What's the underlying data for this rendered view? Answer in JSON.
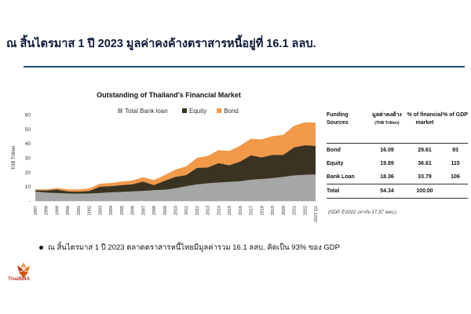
{
  "slide": {
    "title": "ณ สิ้นไตรมาส 1 ปี 2023 มูลค่าคงค้างตราสารหนี้อยู่ที่ 16.1 ลลบ.",
    "bullet": "ณ สิ้นไตรมาส 1 ปี 2023 ตลาดตราสารหนี้ไทยมีมูลค่ารวม 16.1 ลลบ. คิดเป็น 93% ของ GDP",
    "logo_text": "ThaiBMA"
  },
  "colors": {
    "bank_loan": "#a6a6a6",
    "equity": "#3b3321",
    "bond": "#f2994a",
    "rule": "#1f4e79"
  },
  "chart_data": {
    "type": "area",
    "stacked": true,
    "title": "Outstanding of Thailand's Financial Market",
    "ylabel": "THB Trillion",
    "xlabel": "",
    "ylim": [
      0,
      60
    ],
    "yticks": [
      "-",
      "10",
      "20",
      "30",
      "40",
      "50",
      "60"
    ],
    "grid": false,
    "legend_position": "top",
    "categories": [
      "1997",
      "1998",
      "1999",
      "2000",
      "2001",
      "2002",
      "2003",
      "2004",
      "2005",
      "2006",
      "2007",
      "2008",
      "2009",
      "2010",
      "2011",
      "2012",
      "2013",
      "2014",
      "2015",
      "2016",
      "2017",
      "2018",
      "2019",
      "2020",
      "2021",
      "2022",
      "2023 Q1"
    ],
    "series": [
      {
        "name": "Total Bank loan",
        "values": [
          6.5,
          5.8,
          5.5,
          5.2,
          5.0,
          5.2,
          5.5,
          6.0,
          6.3,
          6.6,
          7.0,
          7.5,
          7.8,
          8.8,
          10.2,
          11.5,
          12.3,
          12.8,
          13.3,
          13.7,
          14.7,
          15.3,
          15.8,
          16.7,
          17.7,
          18.2,
          18.4
        ]
      },
      {
        "name": "Equity",
        "values": [
          1.0,
          1.5,
          2.5,
          1.5,
          1.5,
          1.7,
          4.5,
          4.3,
          4.8,
          5.0,
          6.5,
          3.5,
          6.2,
          8.0,
          7.8,
          11.5,
          11.0,
          13.5,
          11.5,
          13.7,
          17.0,
          15.0,
          16.2,
          15.3,
          19.5,
          20.5,
          19.9
        ]
      },
      {
        "name": "Bond",
        "values": [
          0.5,
          0.7,
          1.0,
          1.3,
          1.5,
          1.8,
          2.0,
          2.2,
          2.4,
          2.6,
          3.0,
          3.5,
          4.0,
          5.0,
          6.0,
          7.0,
          8.0,
          9.0,
          10.0,
          11.0,
          11.5,
          12.5,
          13.0,
          14.0,
          15.0,
          16.0,
          16.1
        ]
      }
    ]
  },
  "table": {
    "headers": {
      "c1": "Funding Sources",
      "c2": "มูลค่าคงค้าง",
      "c2_sub": "(THB Trillion)",
      "c3": "% of financial market",
      "c4": "% of GDP"
    },
    "rows": [
      {
        "source": "Bond",
        "value": "16.09",
        "pct_fin": "29.61",
        "pct_gdp": "93"
      },
      {
        "source": "Equity",
        "value": "19.89",
        "pct_fin": "36.61",
        "pct_gdp": "115"
      },
      {
        "source": "Bank Loan",
        "value": "18.36",
        "pct_fin": "33.79",
        "pct_gdp": "106"
      }
    ],
    "total": {
      "source": "Total",
      "value": "54.34",
      "pct_fin": "100.00",
      "pct_gdp": ""
    },
    "note": "(GDP ปี 2022 เท่ากับ 17.37 ลลบ.)"
  }
}
